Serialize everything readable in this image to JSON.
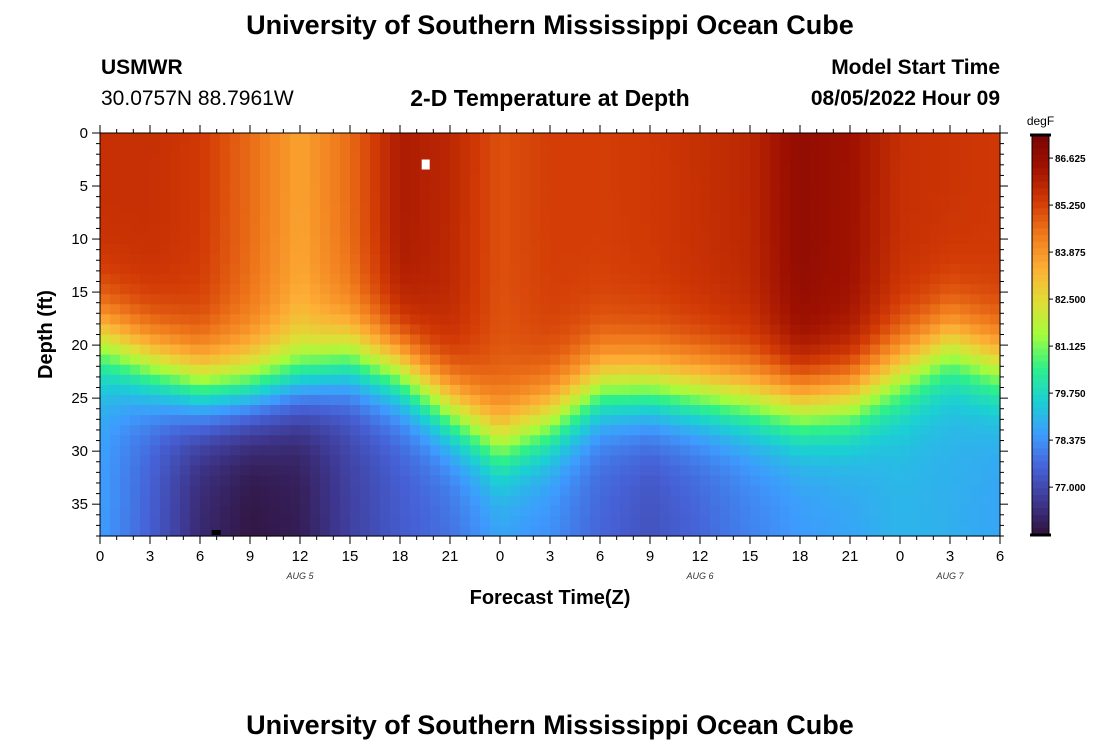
{
  "header": {
    "title_top": "University of Southern Mississippi Ocean Cube",
    "station": "USMWR",
    "coords": "30.0757N  88.7961W",
    "plot_title": "2-D Temperature at Depth",
    "model_start_label": "Model Start Time",
    "model_start_value": "08/05/2022 Hour 09",
    "title_bottom": "University of Southern Mississippi Ocean Cube"
  },
  "chart_data": {
    "type": "heatmap",
    "title": "2-D Temperature at Depth",
    "xlabel": "Forecast Time(Z)",
    "ylabel": "Depth (ft)",
    "x_ticks": [
      "0",
      "3",
      "6",
      "9",
      "12",
      "15",
      "18",
      "21",
      "0",
      "3",
      "6",
      "9",
      "12",
      "15",
      "18",
      "21",
      "0",
      "3",
      "6"
    ],
    "x_range_hours": [
      0,
      54
    ],
    "date_labels": [
      {
        "text": "AUG 5",
        "hour": 12
      },
      {
        "text": "AUG 6",
        "hour": 36
      },
      {
        "text": "AUG 7",
        "hour": 51
      }
    ],
    "y_ticks": [
      0,
      5,
      10,
      15,
      20,
      25,
      30,
      35
    ],
    "ylim": [
      0,
      38
    ],
    "colorbar": {
      "unit": "degF",
      "range": [
        75.6,
        87.3
      ],
      "labels": [
        "86.625",
        "85.250",
        "83.875",
        "82.500",
        "81.125",
        "79.750",
        "78.375",
        "77.000"
      ],
      "colors": [
        "#30123b",
        "#3e378f",
        "#4661d6",
        "#3e9bfe",
        "#1bcfd4",
        "#2ef08a",
        "#a4fc3c",
        "#e1dd37",
        "#fdae35",
        "#f07a1c",
        "#d23a05",
        "#a11201",
        "#7a0403"
      ]
    },
    "cold_tongue_hours": [
      0,
      3,
      6,
      9,
      12,
      15,
      18,
      21,
      24,
      27,
      30,
      33,
      36,
      39,
      42,
      45,
      48,
      51,
      54
    ],
    "cold_tongue_depth_ft": [
      19.5,
      22,
      24,
      24,
      23,
      21.5,
      22.5,
      26,
      29,
      27,
      24,
      24,
      24.5,
      25,
      25.5,
      25,
      22.5,
      20,
      22
    ],
    "surface_temp_degF": [
      85.6,
      85.6,
      85.4,
      84.6,
      83.6,
      84.6,
      86.1,
      85.8,
      85.0,
      85.3,
      85.3,
      85.4,
      85.6,
      85.8,
      86.7,
      86.4,
      85.6,
      85.5,
      85.4
    ],
    "bottom_temp_degF": [
      78.6,
      77.5,
      76.2,
      75.7,
      75.9,
      76.8,
      77.4,
      77.8,
      78.6,
      78.3,
      77.6,
      77.2,
      77.6,
      78.1,
      78.5,
      78.7,
      79.0,
      78.9,
      78.7
    ]
  }
}
